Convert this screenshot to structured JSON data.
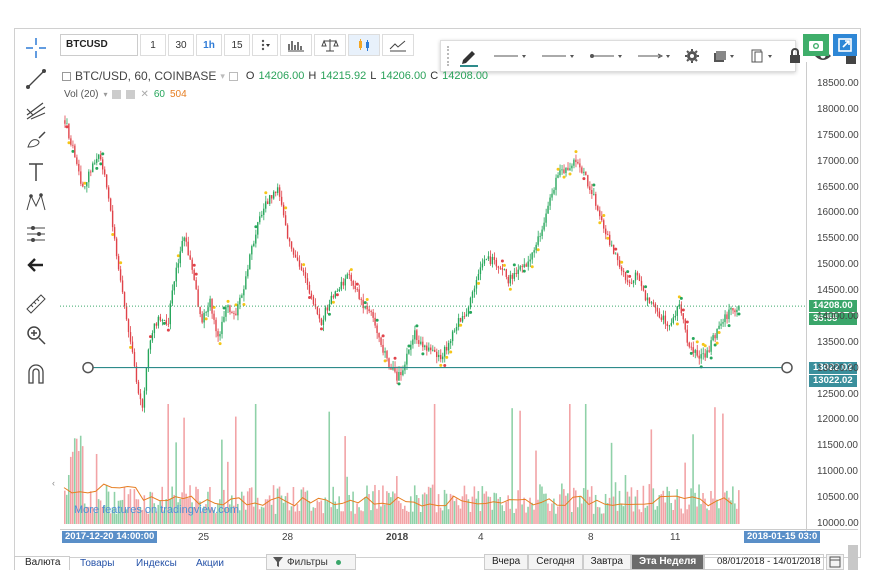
{
  "toolbar": {
    "symbol": "BTCUSD",
    "intervals": [
      "1",
      "30",
      "1h",
      "15"
    ],
    "active_interval": "1h"
  },
  "legend": {
    "title": "BTC/USD, 60, COINBASE",
    "o_label": "O",
    "o_value": "14206.00",
    "h_label": "H",
    "h_value": "14215.92",
    "l_label": "L",
    "l_value": "14206.00",
    "c_label": "C",
    "c_value": "14208.00"
  },
  "volume_legend": {
    "name": "Vol (20)",
    "v1": "60",
    "v2": "504",
    "v1_color": "#26a65b",
    "v2_color": "#e67e22"
  },
  "price_axis": {
    "ticks": [
      "18500.00",
      "18000.00",
      "17500.00",
      "17000.00",
      "16500.00",
      "16000.00",
      "15500.00",
      "15000.00",
      "14500.00",
      "14000.00",
      "13500.00",
      "13000.00",
      "12500.00",
      "12000.00",
      "11500.00",
      "11000.00",
      "10500.00",
      "10000.00"
    ],
    "last_price": "14208.00",
    "countdown": "36:55",
    "line_price_1": "13022.02",
    "line_price_2": "13022.02"
  },
  "time_axis": {
    "start_tag": "2017-12-20 14:00:00",
    "ticks": [
      "25",
      "28",
      "2018",
      "4",
      "8",
      "11"
    ],
    "end_tag": "2018-01-15 03:0"
  },
  "watermark": "More features on tradingview.com",
  "bottom": {
    "tabs": [
      "Валюта",
      "Товары",
      "Индексы",
      "Акции"
    ],
    "filter_label": "Фильтры",
    "periods": [
      "Вчера",
      "Сегодня",
      "Завтра",
      "Эта Неделя"
    ],
    "active_period": "Эта Неделя",
    "date_range": "08/01/2018 - 14/01/2018"
  },
  "colors": {
    "up": "#26a65b",
    "down": "#e0434a",
    "dot_yellow": "#f5c518",
    "horizontal_line": "#2e8b8b",
    "price_tag": "#3aa66a",
    "line_tag": "#3a8f9c"
  },
  "chart_data": {
    "type": "candlestick",
    "x_range": [
      "2017-12-20 14:00",
      "2018-01-15 03:00"
    ],
    "y_range": [
      10000,
      18500
    ],
    "series": [
      {
        "values": [
          17800,
          17200,
          16500,
          16800,
          17200,
          16400,
          15300,
          14200,
          13200,
          12200,
          13600,
          14000,
          13800,
          14900,
          15600,
          14800,
          13900,
          14300,
          13600,
          14200,
          14000,
          14600,
          15400,
          16000,
          16300,
          16500,
          15600,
          15200,
          14800,
          14300,
          13900,
          14300,
          14500,
          14800,
          14600,
          14200,
          14000,
          13500,
          13100,
          12800,
          13200,
          13700,
          13400,
          13300,
          13200,
          13500,
          13900,
          14000,
          14600,
          15100,
          15100,
          15000,
          14700,
          14900,
          15000,
          15300,
          15700,
          16400,
          16800,
          16900,
          17000,
          16700,
          16300,
          15800,
          15400,
          15000,
          14600,
          14800,
          14400,
          14200,
          14000,
          13800,
          14300,
          13500,
          13300,
          13200,
          13600,
          13900,
          14100,
          14208
        ]
      }
    ],
    "horizontal_line": 13022.02,
    "volume_max": 11500
  }
}
